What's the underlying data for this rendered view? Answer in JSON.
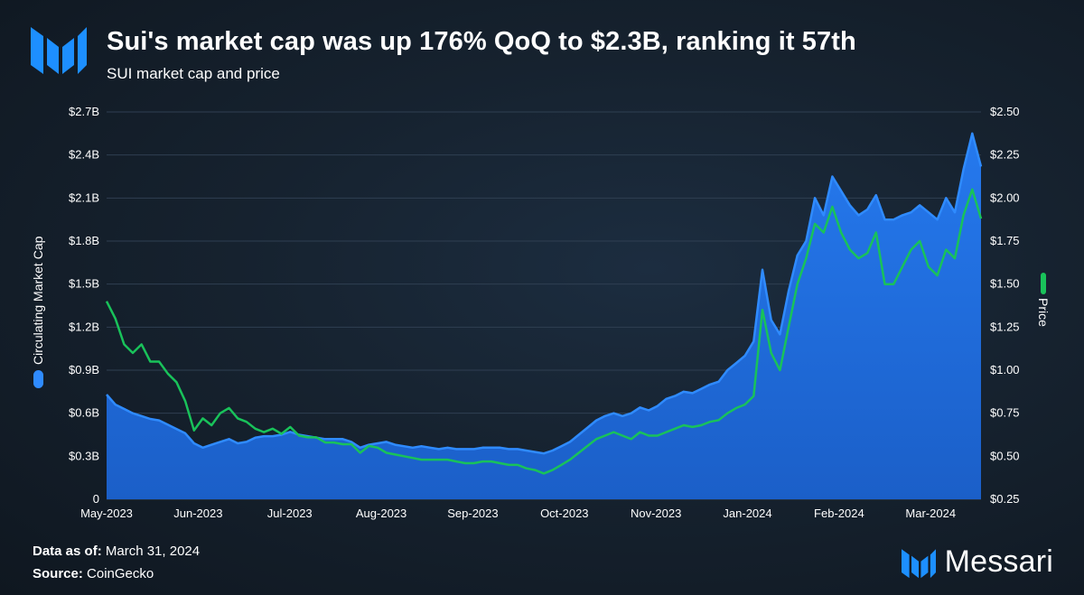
{
  "header": {
    "title": "Sui's market cap was up 176% QoQ to $2.3B, ranking it 57th",
    "subtitle": "SUI market cap and price"
  },
  "footer": {
    "data_as_of_label": "Data as of:",
    "data_as_of_value": "March 31, 2024",
    "source_label": "Source:",
    "source_value": "CoinGecko",
    "brand": "Messari"
  },
  "colors": {
    "market_cap_fill": "#1f6fe0",
    "market_cap_line": "#2f8bff",
    "price_line": "#19c25a",
    "grid": "#2f3f52",
    "brand_blue": "#1d8fff"
  },
  "chart_data": {
    "type": "area",
    "title": "SUI market cap and price",
    "x_tick_labels": [
      "May-2023",
      "Jun-2023",
      "Jul-2023",
      "Aug-2023",
      "Sep-2023",
      "Oct-2023",
      "Nov-2023",
      "Jan-2024",
      "Feb-2024",
      "Mar-2024"
    ],
    "left_axis": {
      "label": "Circulating Market Cap",
      "min": 0,
      "max": 2.7,
      "ticks": [
        0,
        0.3,
        0.6,
        0.9,
        1.2,
        1.5,
        1.8,
        2.1,
        2.4,
        2.7
      ],
      "tick_labels": [
        "0",
        "$0.3B",
        "$0.6B",
        "$0.9B",
        "$1.2B",
        "$1.5B",
        "$1.8B",
        "$2.1B",
        "$2.4B",
        "$2.7B"
      ]
    },
    "right_axis": {
      "label": "Price",
      "min": 0.25,
      "max": 2.5,
      "ticks": [
        0.25,
        0.5,
        0.75,
        1.0,
        1.25,
        1.5,
        1.75,
        2.0,
        2.25,
        2.5
      ],
      "tick_labels": [
        "$0.25",
        "$0.50",
        "$0.75",
        "$1.00",
        "$1.25",
        "$1.50",
        "$1.75",
        "$2.00",
        "$2.25",
        "$2.50"
      ]
    },
    "x_range": [
      0,
      100
    ],
    "legend": [
      "Circulating Market Cap",
      "Price"
    ],
    "series": [
      {
        "name": "Circulating Market Cap",
        "axis": "left",
        "type": "area",
        "unit": "billion USD",
        "x": [
          0,
          1,
          2,
          3,
          4,
          5,
          6,
          7,
          8,
          9,
          10,
          11,
          12,
          13,
          14,
          15,
          16,
          17,
          18,
          19,
          20,
          21,
          22,
          23,
          24,
          25,
          26,
          27,
          28,
          29,
          30,
          31,
          32,
          33,
          34,
          35,
          36,
          37,
          38,
          39,
          40,
          41,
          42,
          43,
          44,
          45,
          46,
          47,
          48,
          49,
          50,
          51,
          52,
          53,
          54,
          55,
          56,
          57,
          58,
          59,
          60,
          61,
          62,
          63,
          64,
          65,
          66,
          67,
          68,
          69,
          70,
          71,
          72,
          73,
          74,
          75,
          76,
          77,
          78,
          79,
          80,
          81,
          82,
          83,
          84,
          85,
          86,
          87,
          88,
          89,
          90,
          91,
          92,
          93,
          94,
          95,
          96,
          97,
          98,
          99,
          100
        ],
        "values": [
          0.73,
          0.66,
          0.63,
          0.6,
          0.58,
          0.56,
          0.55,
          0.52,
          0.49,
          0.46,
          0.39,
          0.36,
          0.38,
          0.4,
          0.42,
          0.39,
          0.4,
          0.43,
          0.44,
          0.44,
          0.45,
          0.47,
          0.45,
          0.44,
          0.43,
          0.42,
          0.42,
          0.42,
          0.4,
          0.36,
          0.38,
          0.39,
          0.4,
          0.38,
          0.37,
          0.36,
          0.37,
          0.36,
          0.35,
          0.36,
          0.35,
          0.35,
          0.35,
          0.36,
          0.36,
          0.36,
          0.35,
          0.35,
          0.34,
          0.33,
          0.32,
          0.34,
          0.37,
          0.4,
          0.45,
          0.5,
          0.55,
          0.58,
          0.6,
          0.58,
          0.6,
          0.64,
          0.62,
          0.65,
          0.7,
          0.72,
          0.75,
          0.74,
          0.77,
          0.8,
          0.82,
          0.9,
          0.95,
          1.0,
          1.1,
          1.6,
          1.25,
          1.15,
          1.45,
          1.7,
          1.8,
          2.1,
          1.98,
          2.25,
          2.15,
          2.05,
          1.98,
          2.02,
          2.12,
          1.95,
          1.95,
          1.98,
          2.0,
          2.05,
          2.0,
          1.95,
          2.1,
          2.0,
          2.3,
          2.55,
          2.32
        ],
        "end_value": 2.3
      },
      {
        "name": "Price",
        "axis": "right",
        "type": "line",
        "unit": "USD",
        "x": [
          0,
          1,
          2,
          3,
          4,
          5,
          6,
          7,
          8,
          9,
          10,
          11,
          12,
          13,
          14,
          15,
          16,
          17,
          18,
          19,
          20,
          21,
          22,
          23,
          24,
          25,
          26,
          27,
          28,
          29,
          30,
          31,
          32,
          33,
          34,
          35,
          36,
          37,
          38,
          39,
          40,
          41,
          42,
          43,
          44,
          45,
          46,
          47,
          48,
          49,
          50,
          51,
          52,
          53,
          54,
          55,
          56,
          57,
          58,
          59,
          60,
          61,
          62,
          63,
          64,
          65,
          66,
          67,
          68,
          69,
          70,
          71,
          72,
          73,
          74,
          75,
          76,
          77,
          78,
          79,
          80,
          81,
          82,
          83,
          84,
          85,
          86,
          87,
          88,
          89,
          90,
          91,
          92,
          93,
          94,
          95,
          96,
          97,
          98,
          99,
          100
        ],
        "values": [
          1.4,
          1.3,
          1.15,
          1.1,
          1.15,
          1.05,
          1.05,
          0.98,
          0.93,
          0.82,
          0.65,
          0.72,
          0.68,
          0.75,
          0.78,
          0.72,
          0.7,
          0.66,
          0.64,
          0.66,
          0.63,
          0.67,
          0.62,
          0.61,
          0.61,
          0.58,
          0.58,
          0.57,
          0.57,
          0.52,
          0.56,
          0.55,
          0.52,
          0.51,
          0.5,
          0.49,
          0.48,
          0.48,
          0.48,
          0.48,
          0.47,
          0.46,
          0.46,
          0.47,
          0.47,
          0.46,
          0.45,
          0.45,
          0.43,
          0.42,
          0.4,
          0.42,
          0.45,
          0.48,
          0.52,
          0.56,
          0.6,
          0.62,
          0.64,
          0.62,
          0.6,
          0.64,
          0.62,
          0.62,
          0.64,
          0.66,
          0.68,
          0.67,
          0.68,
          0.7,
          0.71,
          0.75,
          0.78,
          0.8,
          0.85,
          1.35,
          1.1,
          1.0,
          1.25,
          1.5,
          1.65,
          1.85,
          1.8,
          1.95,
          1.8,
          1.7,
          1.65,
          1.68,
          1.8,
          1.5,
          1.5,
          1.6,
          1.7,
          1.75,
          1.6,
          1.55,
          1.7,
          1.65,
          1.9,
          2.05,
          1.88
        ],
        "end_value": 1.88
      }
    ]
  }
}
